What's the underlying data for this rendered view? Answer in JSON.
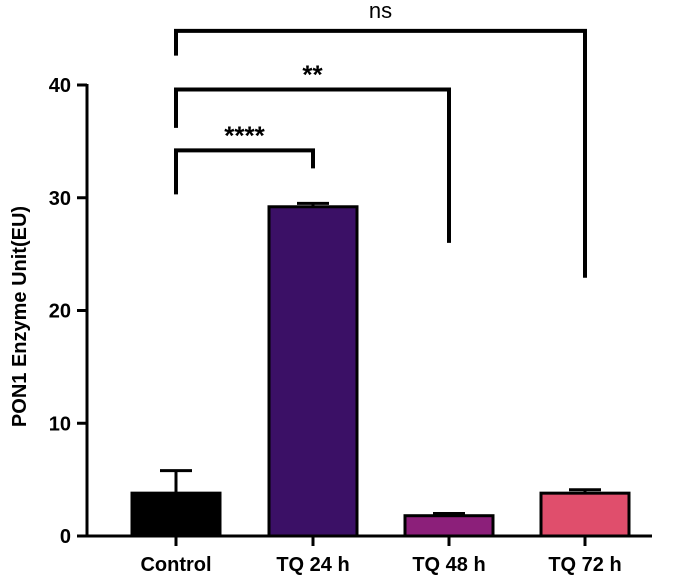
{
  "chart_data": {
    "type": "bar",
    "title": "",
    "xlabel": "",
    "ylabel": "PON1 Enzyme Unit(EU)",
    "ylim": [
      0,
      40
    ],
    "yticks": [
      0,
      10,
      20,
      30,
      40
    ],
    "ytick_labels": [
      "0",
      "10",
      "20",
      "30",
      "40"
    ],
    "grid": false,
    "categories": [
      "Control",
      "TQ 24 h",
      "TQ 48 h",
      "TQ 72 h"
    ],
    "values": [
      3.8,
      29.2,
      1.8,
      3.8
    ],
    "errors": [
      2.0,
      0.3,
      0.2,
      0.3
    ],
    "colors": [
      "#000000",
      "#3b1066",
      "#8c1f7a",
      "#e04e6c"
    ],
    "comparisons": [
      {
        "from": "Control",
        "to": "TQ 24 h",
        "label": "****",
        "bracket_y": 34.2,
        "from_end_y": 30.3,
        "to_end_y": 32.6
      },
      {
        "from": "Control",
        "to": "TQ 48 h",
        "label": "**",
        "bracket_y": 39.6,
        "from_end_y": 36.2,
        "to_end_y": 26.0
      },
      {
        "from": "Control",
        "to": "TQ 72 h",
        "label": "ns",
        "bracket_y": 44.8,
        "from_end_y": 42.6,
        "to_end_y": 22.9
      }
    ]
  }
}
